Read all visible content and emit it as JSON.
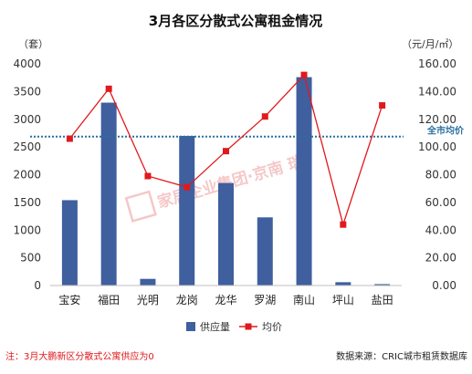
{
  "chart_data": {
    "type": "bar+line",
    "title": "3月各区分散式公寓租金情况",
    "left_unit": "（套）",
    "right_unit": "（元/月/㎡）",
    "categories": [
      "宝安",
      "福田",
      "光明",
      "龙岗",
      "龙华",
      "罗湖",
      "南山",
      "坪山",
      "盐田"
    ],
    "ylim_left": [
      0,
      4000
    ],
    "yticks_left": [
      "0",
      "500",
      "1000",
      "1500",
      "2000",
      "2500",
      "3000",
      "3500",
      "4000"
    ],
    "ylim_right": [
      0,
      160
    ],
    "yticks_right": [
      "0.00",
      "20.00",
      "40.00",
      "60.00",
      "80.00",
      "100.00",
      "120.00",
      "140.00",
      "160.00"
    ],
    "series": [
      {
        "name": "供应量",
        "type": "bar",
        "axis": "left",
        "color": "#3f5f9e",
        "values": [
          1540,
          3300,
          120,
          2700,
          1850,
          1230,
          3760,
          60,
          25
        ]
      },
      {
        "name": "均价",
        "type": "line",
        "axis": "right",
        "color": "#e0191d",
        "values": [
          106,
          142,
          79,
          71,
          97,
          122,
          152,
          44,
          130
        ]
      }
    ],
    "reference_line": {
      "label": "全市均价",
      "value": 107.5,
      "axis": "right",
      "color": "#2a6f9e"
    },
    "legend_position": "bottom",
    "grid": false
  },
  "watermark": "家居企业集团·京南 瑞",
  "footnote": "注：3月大鹏新区分散式公寓供应为0",
  "source": "数据来源：CRIC城市租赁数据库"
}
